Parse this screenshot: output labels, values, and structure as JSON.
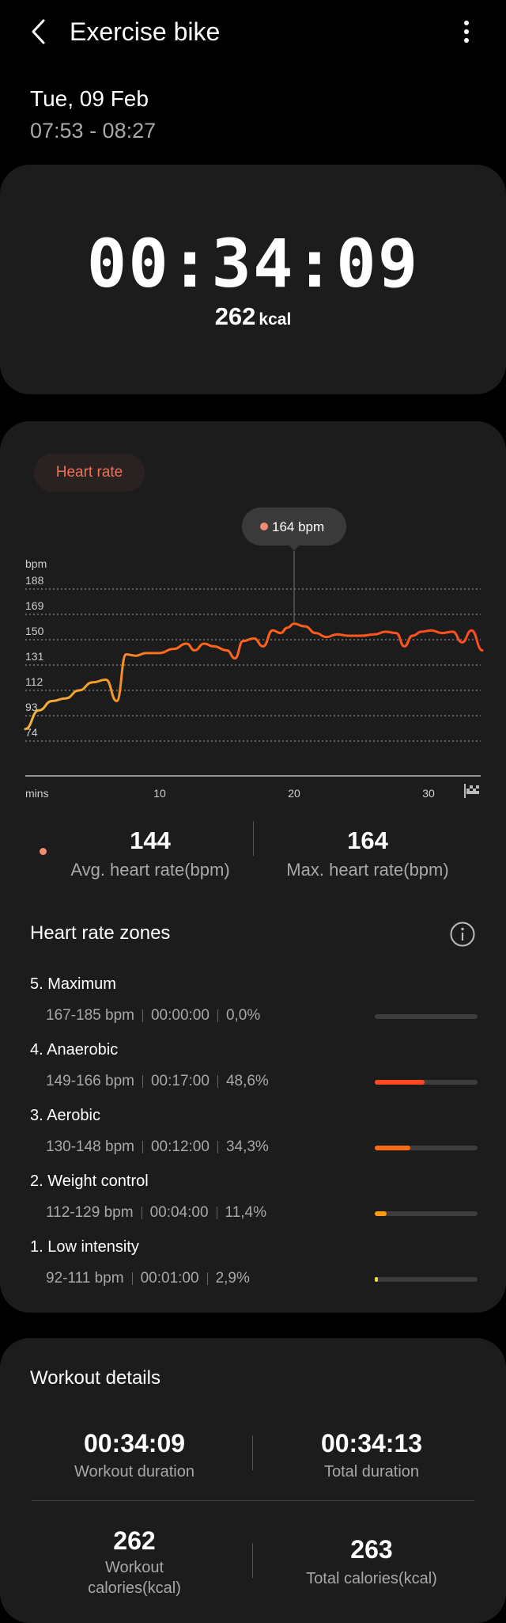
{
  "header": {
    "title": "Exercise bike"
  },
  "session": {
    "date": "Tue, 09 Feb",
    "time_range": "07:53 - 08:27"
  },
  "summary": {
    "duration": "00:34:09",
    "calories": "262",
    "calories_unit": "kcal"
  },
  "heart_rate": {
    "chip_label": "Heart rate",
    "tooltip": "164 bpm",
    "avg_value": "144",
    "avg_label": "Avg. heart rate(bpm)",
    "max_value": "164",
    "max_label": "Max. heart rate(bpm)"
  },
  "chart_data": {
    "type": "line",
    "ylabel": "bpm",
    "xlabel": "mins",
    "y_ticks": [
      188,
      169,
      150,
      131,
      112,
      93,
      74
    ],
    "x_ticks": [
      10,
      20,
      30
    ],
    "xlim": [
      0,
      34
    ],
    "ylim": [
      60,
      195
    ],
    "series": [
      {
        "x": [
          0,
          1,
          2,
          3,
          4,
          5,
          6,
          6.8,
          7.5,
          8.2,
          9,
          10,
          11,
          12,
          12.6,
          13.3,
          14,
          15,
          15.6,
          16.2,
          17,
          17.7,
          18.4,
          19,
          19.5,
          20,
          20.8,
          21.6,
          22.4,
          23.2,
          24,
          25,
          26,
          26.8,
          27.6,
          28.2,
          28.8,
          29.5,
          30.2,
          31,
          31.8,
          32.5,
          33.2,
          34
        ],
        "y": [
          83,
          97,
          104,
          106,
          112,
          118,
          120,
          104,
          139,
          138,
          140,
          140,
          143,
          147,
          142,
          147,
          145,
          142,
          136,
          149,
          151,
          145,
          157,
          155,
          159,
          162,
          160,
          155,
          152,
          154,
          153,
          153,
          154,
          156,
          155,
          145,
          153,
          156,
          157,
          155,
          156,
          148,
          157,
          142
        ]
      }
    ],
    "annotation": {
      "x": 20,
      "y": 164,
      "label": "164 bpm"
    },
    "colors": {
      "low": "#f0b43c",
      "high": "#ff5a1f"
    }
  },
  "zones": {
    "title": "Heart rate zones",
    "items": [
      {
        "name": "5. Maximum",
        "range": "167-185 bpm",
        "time": "00:00:00",
        "percent": "0,0%",
        "fraction": 0.0,
        "color": "#ff4b1f"
      },
      {
        "name": "4. Anaerobic",
        "range": "149-166 bpm",
        "time": "00:17:00",
        "percent": "48,6%",
        "fraction": 0.486,
        "color": "#ff4b1f"
      },
      {
        "name": "3. Aerobic",
        "range": "130-148 bpm",
        "time": "00:12:00",
        "percent": "34,3%",
        "fraction": 0.343,
        "color": "#ff6a16"
      },
      {
        "name": "2. Weight control",
        "range": "112-129 bpm",
        "time": "00:04:00",
        "percent": "11,4%",
        "fraction": 0.114,
        "color": "#ff9a17"
      },
      {
        "name": "1. Low intensity",
        "range": "92-111 bpm",
        "time": "00:01:00",
        "percent": "2,9%",
        "fraction": 0.029,
        "color": "#f7d23b"
      }
    ]
  },
  "workout_details": {
    "title": "Workout details",
    "workout_duration": "00:34:09",
    "workout_duration_label": "Workout duration",
    "total_duration": "00:34:13",
    "total_duration_label": "Total duration",
    "workout_calories": "262",
    "workout_calories_label_1": "Workout",
    "workout_calories_label_2": "calories(kcal)",
    "total_calories": "263",
    "total_calories_label": "Total calories(kcal)"
  }
}
